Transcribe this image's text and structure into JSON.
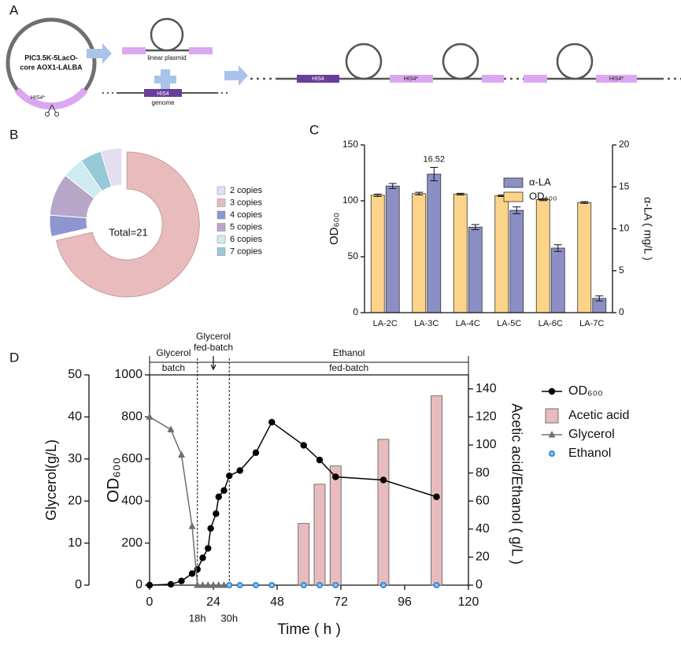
{
  "panel_labels": [
    "A",
    "B",
    "C",
    "D"
  ],
  "diagram": {
    "plasmid": [
      "PIC3.5K-5LacO-",
      "core AOX1-LALBA"
    ],
    "plasmid_marker": "HIS4*",
    "linear_plasmid": "linear plasmid",
    "genome_gene": "HIS4",
    "genome": "genome",
    "construct": [
      "HIS4",
      "HIS4*",
      "HIS4*"
    ]
  },
  "chart_data": [
    {
      "type": "donut",
      "center_label": "Total=21",
      "categories": [
        "2 copies",
        "3 copies",
        "4 copies",
        "5 copies",
        "6 copies",
        "7 copies"
      ],
      "values": [
        1,
        15,
        1,
        2,
        1,
        1
      ],
      "colors": [
        "#e3def0",
        "#e8bcbc",
        "#8f95cf",
        "#b8a6c8",
        "#cdebf0",
        "#96cad6"
      ]
    },
    {
      "type": "bar",
      "categories": [
        "LA-2C",
        "LA-3C",
        "LA-4C",
        "LA-5C",
        "LA-6C",
        "LA-7C"
      ],
      "ylabel": "OD₆₀₀",
      "ylim": [
        0,
        150
      ],
      "yticks": [
        0,
        50,
        100,
        150
      ],
      "y2label": "α-LA ( mg/L )",
      "y2lim": [
        0,
        20
      ],
      "y2ticks": [
        0,
        5,
        10,
        15,
        20
      ],
      "series": [
        {
          "name": "α-LA",
          "color": "#8b8fc4",
          "axis": "y2",
          "values": [
            15.1,
            16.52,
            10.2,
            12.2,
            7.7,
            1.7
          ],
          "errors": [
            0.3,
            0.8,
            0.3,
            0.4,
            0.4,
            0.3
          ],
          "value_labels": [
            null,
            "16.52",
            null,
            null,
            null,
            null
          ]
        },
        {
          "name": "OD₆₀₀",
          "color": "#fbd48a",
          "values": [
            105,
            106.5,
            106,
            104.5,
            101,
            98.5
          ],
          "errors": [
            1,
            1.2,
            0.8,
            0.6,
            0.8,
            0.8
          ]
        }
      ]
    },
    {
      "type": "combo",
      "xlabel": "Time ( h )",
      "xlim": [
        0,
        120
      ],
      "xticks": [
        0,
        24,
        48,
        72,
        96,
        120
      ],
      "xmarks": [
        {
          "value": 18,
          "label": "18h"
        },
        {
          "value": 30,
          "label": "30h"
        }
      ],
      "phases": [
        [
          "Glycerol",
          "batch"
        ],
        [
          "Glycerol",
          "fed-batch"
        ],
        [
          "Ethanol",
          "fed-batch"
        ]
      ],
      "ylabel": "OD₆₀₀",
      "ylim": [
        0,
        1000
      ],
      "yticks": [
        0,
        200,
        400,
        600,
        800,
        1000
      ],
      "y2label": "Acetic acid/Ethanol ( g/L )",
      "y2lim": [
        0,
        150
      ],
      "y2ticks": [
        0,
        20,
        40,
        60,
        80,
        100,
        120,
        140
      ],
      "y3label": "Glycerol(g/L)",
      "y3lim": [
        0,
        50
      ],
      "y3ticks": [
        0,
        10,
        20,
        30,
        40,
        50
      ],
      "series": [
        {
          "name": "OD₆₀₀",
          "kind": "line",
          "marker": "circle",
          "color": "#000000",
          "x": [
            0,
            8,
            12,
            16,
            18,
            20,
            22,
            23,
            25,
            26,
            28,
            30,
            34,
            40,
            46,
            58,
            64,
            70,
            88,
            108
          ],
          "values": [
            0,
            4,
            20,
            55,
            75,
            130,
            175,
            270,
            340,
            420,
            450,
            520,
            545,
            630,
            775,
            665,
            595,
            515,
            500,
            420
          ]
        },
        {
          "name": "Acetic acid",
          "kind": "bar",
          "color": "#e8bcbc",
          "axis": "y2",
          "x": [
            58,
            64,
            70,
            88,
            108
          ],
          "values": [
            44,
            72,
            85,
            104,
            135
          ]
        },
        {
          "name": "Glycerol",
          "kind": "line",
          "marker": "triangle",
          "color": "#6e6e6e",
          "axis": "y3",
          "x": [
            0,
            8,
            12,
            16,
            18,
            20,
            22,
            24,
            26,
            28
          ],
          "values": [
            40,
            37,
            31,
            14,
            0,
            0,
            0,
            0,
            0,
            0
          ]
        },
        {
          "name": "Ethanol",
          "kind": "marker",
          "marker": "circle-open",
          "color": "#1f78d1",
          "axis": "y2",
          "x": [
            30,
            34,
            40,
            46,
            58,
            64,
            70,
            88,
            108
          ],
          "values": [
            0,
            0,
            0,
            0,
            0,
            0,
            0,
            0,
            0
          ]
        }
      ]
    }
  ]
}
